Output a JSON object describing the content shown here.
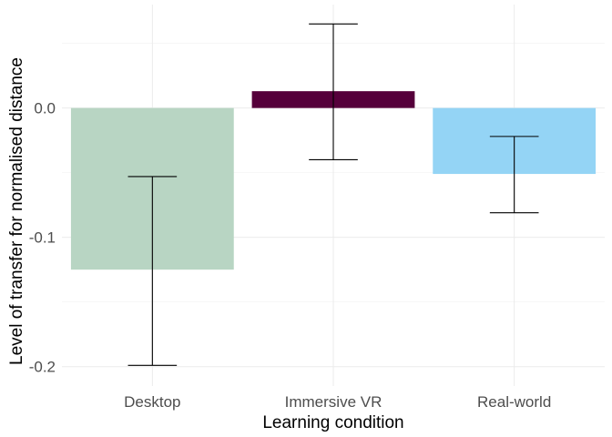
{
  "chart_data": {
    "type": "bar",
    "title": "",
    "xlabel": "Learning condition",
    "ylabel": "Level of transfer for normalised distance",
    "categories": [
      "Desktop",
      "Immersive VR",
      "Real-world"
    ],
    "values": [
      -0.125,
      0.013,
      -0.051
    ],
    "error_low": [
      -0.199,
      -0.04,
      -0.081
    ],
    "error_high": [
      -0.053,
      0.065,
      -0.022
    ],
    "colors": [
      "#b8d5c3",
      "#56003b",
      "#94d4f5"
    ],
    "ylim": [
      -0.215,
      0.08
    ],
    "yticks": [
      0.0,
      -0.1,
      -0.2
    ],
    "ytick_labels": [
      "0.0",
      "-0.1",
      "-0.2"
    ],
    "grid": true
  }
}
